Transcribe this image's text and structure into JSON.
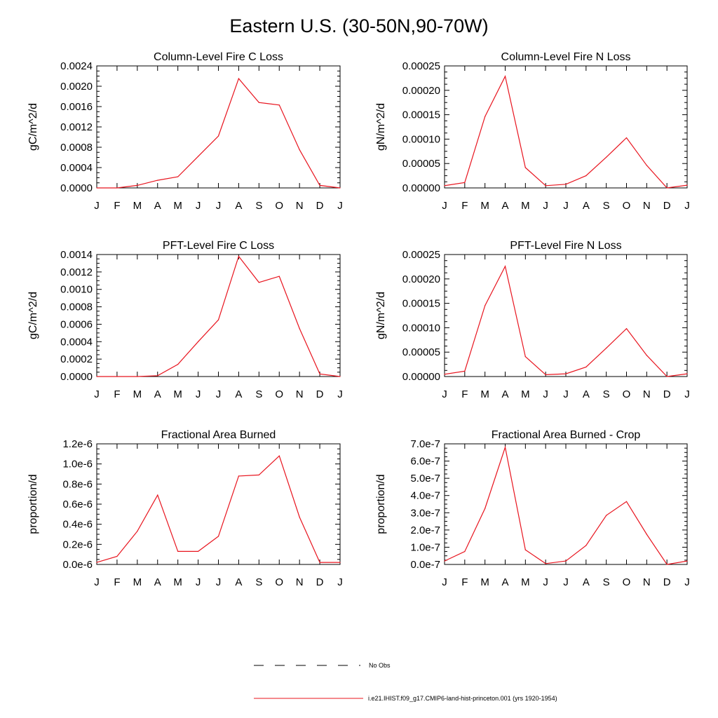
{
  "title": "Eastern U.S. (30-50N,90-70W)",
  "months": [
    "J",
    "F",
    "M",
    "A",
    "M",
    "J",
    "J",
    "A",
    "S",
    "O",
    "N",
    "D",
    "J"
  ],
  "series_color": "#e8141e",
  "chart_data": [
    {
      "type": "line",
      "title": "Column-Level Fire C Loss",
      "ylabel": "gC/m^2/d",
      "ylim": [
        0,
        0.0024
      ],
      "yticks": [
        "0.0000",
        "0.0004",
        "0.0008",
        "0.0012",
        "0.0016",
        "0.0020",
        "0.0024"
      ],
      "values": [
        0.0,
        0.0,
        5e-05,
        0.00015,
        0.00022,
        0.00062,
        0.00102,
        0.00215,
        0.00168,
        0.00163,
        0.00075,
        5e-05,
        0.0
      ]
    },
    {
      "type": "line",
      "title": "Column-Level Fire N Loss",
      "ylabel": "gN/m^2/d",
      "ylim": [
        0,
        0.00027
      ],
      "yticks": [
        "0.00000",
        "0.00005",
        "0.00010",
        "0.00015",
        "0.00020",
        "0.00025"
      ],
      "values": [
        5e-06,
        1.2e-05,
        0.000158,
        0.000247,
        4.5e-05,
        5e-06,
        8e-06,
        2.7e-05,
        6.8e-05,
        0.000111,
        5e-05,
        0.0,
        6e-06
      ]
    },
    {
      "type": "line",
      "title": "PFT-Level Fire C Loss",
      "ylabel": "gC/m^2/d",
      "ylim": [
        0,
        0.0014
      ],
      "yticks": [
        "0.0000",
        "0.0002",
        "0.0004",
        "0.0006",
        "0.0008",
        "0.0010",
        "0.0012",
        "0.0014"
      ],
      "values": [
        0.0,
        0.0,
        0.0,
        1e-05,
        0.00014,
        0.0004,
        0.00065,
        0.00138,
        0.00108,
        0.00115,
        0.00055,
        3e-05,
        0.0
      ]
    },
    {
      "type": "line",
      "title": "PFT-Level Fire N Loss",
      "ylabel": "gN/m^2/d",
      "ylim": [
        0,
        0.00027
      ],
      "yticks": [
        "0.00000",
        "0.00005",
        "0.00010",
        "0.00015",
        "0.00020",
        "0.00025"
      ],
      "values": [
        5e-06,
        1.2e-05,
        0.000157,
        0.000244,
        4.4e-05,
        4e-06,
        6e-06,
        2.1e-05,
        6.3e-05,
        0.000106,
        4.7e-05,
        0.0,
        6e-06
      ]
    },
    {
      "type": "line",
      "title": "Fractional Area Burned",
      "ylabel": "proportion/d",
      "ylim": [
        0,
        1.2e-06
      ],
      "yticks": [
        "0.0e-6",
        "0.2e-6",
        "0.4e-6",
        "0.6e-6",
        "0.8e-6",
        "1.0e-6",
        "1.2e-6"
      ],
      "values": [
        2e-08,
        8e-08,
        3.3e-07,
        6.9e-07,
        1.3e-07,
        1.3e-07,
        2.8e-07,
        8.8e-07,
        8.9e-07,
        1.08e-06,
        4.7e-07,
        2e-08,
        2e-08
      ]
    },
    {
      "type": "line",
      "title": "Fractional Area Burned - Crop",
      "ylabel": "proportion/d",
      "ylim": [
        0,
        7e-07
      ],
      "yticks": [
        "0.0e-7",
        "1.0e-7",
        "2.0e-7",
        "3.0e-7",
        "4.0e-7",
        "5.0e-7",
        "6.0e-7",
        "7.0e-7"
      ],
      "values": [
        2e-08,
        7.5e-08,
        3.25e-07,
        6.8e-07,
        8.5e-08,
        5e-09,
        2e-08,
        1.1e-07,
        2.85e-07,
        3.65e-07,
        1.75e-07,
        0.0,
        2e-08
      ]
    }
  ],
  "legend": {
    "obs_label": "No Obs",
    "model_label": "i.e21.IHIST.f09_g17.CMIP6-land-hist-princeton.001 (yrs 1920-1954)"
  }
}
